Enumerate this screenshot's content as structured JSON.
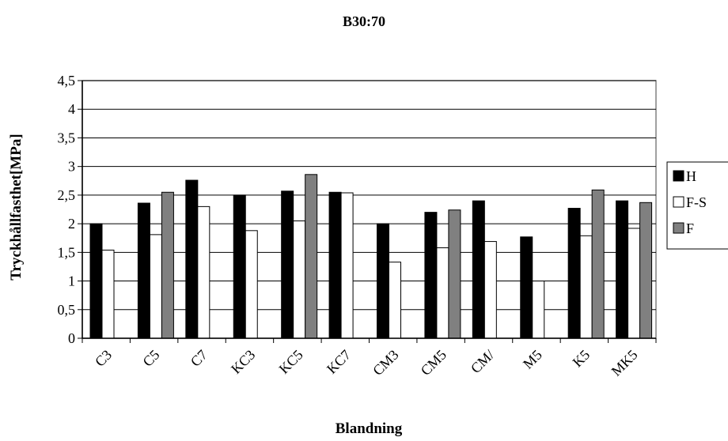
{
  "chart_data": {
    "type": "bar",
    "title": "B30:70",
    "xlabel": "Blandning",
    "ylabel": "Tryckhållfasthet[MPa]",
    "ylim": [
      0,
      4.5
    ],
    "yticks": [
      "0",
      "0,5",
      "1",
      "1,5",
      "2",
      "2,5",
      "3",
      "3,5",
      "4",
      "4,5"
    ],
    "grid": true,
    "legend_position": "right",
    "categories": [
      "C3",
      "C5",
      "C7",
      "KC3",
      "KC5",
      "KC7",
      "CM3",
      "CM5",
      "CM/",
      "M5",
      "K5",
      "MK5"
    ],
    "series": [
      {
        "name": "H",
        "color": "#000000",
        "values": [
          2.0,
          2.36,
          2.76,
          2.5,
          2.57,
          2.55,
          2.0,
          2.2,
          2.4,
          1.77,
          2.27,
          2.4
        ]
      },
      {
        "name": "F-S",
        "color": "#ffffff",
        "values": [
          1.54,
          1.81,
          2.3,
          1.88,
          2.05,
          2.54,
          1.33,
          1.58,
          1.69,
          1.0,
          1.79,
          1.92
        ]
      },
      {
        "name": "F",
        "color": "#808080",
        "values": [
          null,
          2.55,
          null,
          null,
          2.86,
          null,
          null,
          2.24,
          null,
          null,
          2.59,
          2.37
        ]
      }
    ]
  }
}
